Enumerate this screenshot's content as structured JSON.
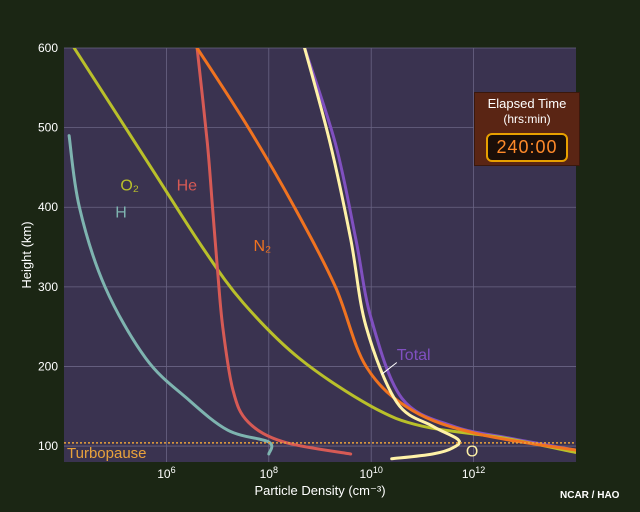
{
  "chart_data": {
    "type": "line",
    "title": "",
    "xlabel": "Particle Density (cm⁻³)",
    "ylabel": "Height (km)",
    "xscale": "log",
    "xlim_log10": [
      4,
      14
    ],
    "ylim": [
      80,
      600
    ],
    "x_ticks": [
      {
        "exp": 6,
        "label": "10",
        "sup": "6"
      },
      {
        "exp": 8,
        "label": "10",
        "sup": "8"
      },
      {
        "exp": 10,
        "label": "10",
        "sup": "10"
      },
      {
        "exp": 12,
        "label": "10",
        "sup": "12"
      }
    ],
    "y_ticks": [
      100,
      200,
      300,
      400,
      500,
      600
    ],
    "grid": true,
    "series": [
      {
        "name": "H",
        "color": "#7eb4b0",
        "label_pos": [
          5.0,
          387
        ],
        "points": [
          [
            4.1,
            490
          ],
          [
            4.3,
            400
          ],
          [
            4.8,
            300
          ],
          [
            5.6,
            210
          ],
          [
            6.4,
            160
          ],
          [
            7.2,
            120
          ],
          [
            8.0,
            105
          ],
          [
            8.0,
            90
          ]
        ]
      },
      {
        "name": "O₂",
        "color": "#b9c02a",
        "label_pos": [
          5.1,
          421
        ],
        "points": [
          [
            4.2,
            600
          ],
          [
            5.7,
            450
          ],
          [
            6.7,
            350
          ],
          [
            7.5,
            280
          ],
          [
            8.6,
            210
          ],
          [
            10.0,
            150
          ],
          [
            11.0,
            125
          ],
          [
            12.6,
            110
          ],
          [
            14.0,
            92
          ]
        ]
      },
      {
        "name": "He",
        "color": "#d65a55",
        "label_pos": [
          6.2,
          421
        ],
        "points": [
          [
            6.6,
            600
          ],
          [
            6.8,
            480
          ],
          [
            6.9,
            400
          ],
          [
            7.0,
            320
          ],
          [
            7.1,
            250
          ],
          [
            7.3,
            170
          ],
          [
            7.6,
            130
          ],
          [
            8.3,
            105
          ],
          [
            9.6,
            90
          ]
        ]
      },
      {
        "name": "N₂",
        "color": "#f07320",
        "label_pos": [
          7.7,
          345
        ],
        "points": [
          [
            6.6,
            600
          ],
          [
            7.6,
            500
          ],
          [
            8.5,
            400
          ],
          [
            9.3,
            300
          ],
          [
            9.9,
            200
          ],
          [
            10.8,
            145
          ],
          [
            12.1,
            115
          ],
          [
            14.0,
            95
          ]
        ]
      },
      {
        "name": "O",
        "color": "#fff2a8",
        "label_pos": [
          11.85,
          87
        ],
        "points": [
          [
            8.7,
            600
          ],
          [
            9.2,
            480
          ],
          [
            9.6,
            360
          ],
          [
            9.9,
            250
          ],
          [
            10.5,
            155
          ],
          [
            11.2,
            125
          ],
          [
            11.7,
            108
          ],
          [
            11.6,
            98
          ],
          [
            11.2,
            90
          ],
          [
            10.4,
            84
          ]
        ]
      },
      {
        "name": "Total",
        "color": "#8050c0",
        "label_pos": [
          10.5,
          208
        ],
        "points": [
          [
            8.7,
            600
          ],
          [
            9.3,
            480
          ],
          [
            9.7,
            360
          ],
          [
            10.0,
            260
          ],
          [
            10.6,
            160
          ],
          [
            11.6,
            125
          ],
          [
            12.7,
            110
          ],
          [
            14.0,
            95
          ]
        ]
      }
    ],
    "total_leader": {
      "from": [
        10.5,
        205
      ],
      "to": [
        10.2,
        190
      ]
    },
    "turbopause": {
      "height_km": 104,
      "label": "Turbopause",
      "color": "#e9a23b"
    }
  },
  "elapsed": {
    "title": "Elapsed Time",
    "subtitle": "(hrs:min)",
    "value": "240:00"
  },
  "credit": "NCAR / HAO"
}
